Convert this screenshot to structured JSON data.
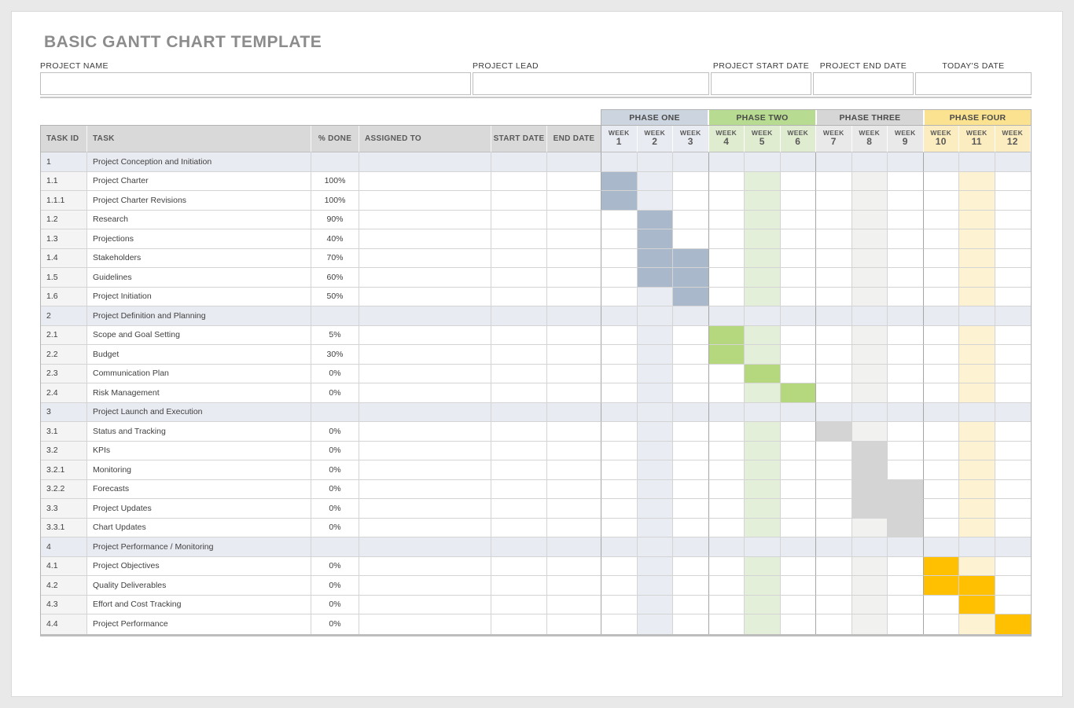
{
  "page": {
    "title": "BASIC GANTT CHART TEMPLATE",
    "background_color": "#e9e9e9",
    "sheet_color": "#ffffff",
    "title_color": "#8c8c8c"
  },
  "form": {
    "fields": [
      {
        "id": "project-name",
        "label": "PROJECT NAME",
        "value": ""
      },
      {
        "id": "project-lead",
        "label": "PROJECT LEAD",
        "value": ""
      },
      {
        "id": "project-start-date",
        "label": "PROJECT START DATE",
        "value": ""
      },
      {
        "id": "project-end-date",
        "label": "PROJECT END DATE",
        "value": ""
      },
      {
        "id": "todays-date",
        "label": "TODAY'S DATE",
        "value": ""
      }
    ]
  },
  "chart_data": {
    "type": "table",
    "subtype": "gantt",
    "title": "BASIC GANTT CHART TEMPLATE",
    "columns": [
      "TASK ID",
      "TASK",
      "% DONE",
      "ASSIGNED TO",
      "START DATE",
      "END DATE"
    ],
    "week_label": "WEEK",
    "header_bg": "#d9d9d9",
    "section_row_bg": "#e9ebf2",
    "task_id_col_bg": "#f4f4f4",
    "stripe_weeks": [
      2,
      5,
      8,
      11
    ],
    "phases": [
      {
        "name": "PHASE ONE",
        "weeks": [
          1,
          2,
          3
        ],
        "header_bg": "#ccd4df",
        "week_header_bg": "#e8ebf1",
        "bar_color": "#a9b8cb",
        "stripe_color": "#e9ecf3"
      },
      {
        "name": "PHASE TWO",
        "weeks": [
          4,
          5,
          6
        ],
        "header_bg": "#b7db90",
        "week_header_bg": "#dfecd0",
        "bar_color": "#b5d87e",
        "stripe_color": "#e3efd9"
      },
      {
        "name": "PHASE THREE",
        "weeks": [
          7,
          8,
          9
        ],
        "header_bg": "#d6d6d6",
        "week_header_bg": "#e9e9e9",
        "bar_color": "#d4d4d4",
        "stripe_color": "#f1f1ef"
      },
      {
        "name": "PHASE FOUR",
        "weeks": [
          10,
          11,
          12
        ],
        "header_bg": "#fbe291",
        "week_header_bg": "#fbedbf",
        "bar_color": "#fec000",
        "stripe_color": "#fdf3d3"
      }
    ],
    "tasks": [
      {
        "id": "1",
        "task": "Project Conception and Initiation",
        "percent_done": "",
        "assigned_to": "",
        "start_date": "",
        "end_date": "",
        "section": true,
        "bar_weeks": []
      },
      {
        "id": "1.1",
        "task": "Project Charter",
        "percent_done": "100%",
        "assigned_to": "",
        "start_date": "",
        "end_date": "",
        "section": false,
        "bar_weeks": [
          1
        ]
      },
      {
        "id": "1.1.1",
        "task": "Project Charter Revisions",
        "percent_done": "100%",
        "assigned_to": "",
        "start_date": "",
        "end_date": "",
        "section": false,
        "bar_weeks": [
          1
        ]
      },
      {
        "id": "1.2",
        "task": "Research",
        "percent_done": "90%",
        "assigned_to": "",
        "start_date": "",
        "end_date": "",
        "section": false,
        "bar_weeks": [
          2
        ]
      },
      {
        "id": "1.3",
        "task": "Projections",
        "percent_done": "40%",
        "assigned_to": "",
        "start_date": "",
        "end_date": "",
        "section": false,
        "bar_weeks": [
          2
        ]
      },
      {
        "id": "1.4",
        "task": "Stakeholders",
        "percent_done": "70%",
        "assigned_to": "",
        "start_date": "",
        "end_date": "",
        "section": false,
        "bar_weeks": [
          2,
          3
        ]
      },
      {
        "id": "1.5",
        "task": "Guidelines",
        "percent_done": "60%",
        "assigned_to": "",
        "start_date": "",
        "end_date": "",
        "section": false,
        "bar_weeks": [
          2,
          3
        ]
      },
      {
        "id": "1.6",
        "task": "Project Initiation",
        "percent_done": "50%",
        "assigned_to": "",
        "start_date": "",
        "end_date": "",
        "section": false,
        "bar_weeks": [
          3
        ]
      },
      {
        "id": "2",
        "task": "Project Definition and Planning",
        "percent_done": "",
        "assigned_to": "",
        "start_date": "",
        "end_date": "",
        "section": true,
        "bar_weeks": []
      },
      {
        "id": "2.1",
        "task": "Scope and Goal Setting",
        "percent_done": "5%",
        "assigned_to": "",
        "start_date": "",
        "end_date": "",
        "section": false,
        "bar_weeks": [
          4
        ]
      },
      {
        "id": "2.2",
        "task": "Budget",
        "percent_done": "30%",
        "assigned_to": "",
        "start_date": "",
        "end_date": "",
        "section": false,
        "bar_weeks": [
          4
        ]
      },
      {
        "id": "2.3",
        "task": "Communication Plan",
        "percent_done": "0%",
        "assigned_to": "",
        "start_date": "",
        "end_date": "",
        "section": false,
        "bar_weeks": [
          5
        ]
      },
      {
        "id": "2.4",
        "task": "Risk Management",
        "percent_done": "0%",
        "assigned_to": "",
        "start_date": "",
        "end_date": "",
        "section": false,
        "bar_weeks": [
          6
        ]
      },
      {
        "id": "3",
        "task": "Project Launch and Execution",
        "percent_done": "",
        "assigned_to": "",
        "start_date": "",
        "end_date": "",
        "section": true,
        "bar_weeks": []
      },
      {
        "id": "3.1",
        "task": "Status and Tracking",
        "percent_done": "0%",
        "assigned_to": "",
        "start_date": "",
        "end_date": "",
        "section": false,
        "bar_weeks": [
          7
        ]
      },
      {
        "id": "3.2",
        "task": "KPIs",
        "percent_done": "0%",
        "assigned_to": "",
        "start_date": "",
        "end_date": "",
        "section": false,
        "bar_weeks": [
          8
        ]
      },
      {
        "id": "3.2.1",
        "task": "Monitoring",
        "percent_done": "0%",
        "assigned_to": "",
        "start_date": "",
        "end_date": "",
        "section": false,
        "bar_weeks": [
          8
        ]
      },
      {
        "id": "3.2.2",
        "task": "Forecasts",
        "percent_done": "0%",
        "assigned_to": "",
        "start_date": "",
        "end_date": "",
        "section": false,
        "bar_weeks": [
          8,
          9
        ]
      },
      {
        "id": "3.3",
        "task": "Project Updates",
        "percent_done": "0%",
        "assigned_to": "",
        "start_date": "",
        "end_date": "",
        "section": false,
        "bar_weeks": [
          8,
          9
        ]
      },
      {
        "id": "3.3.1",
        "task": "Chart Updates",
        "percent_done": "0%",
        "assigned_to": "",
        "start_date": "",
        "end_date": "",
        "section": false,
        "bar_weeks": [
          9
        ]
      },
      {
        "id": "4",
        "task": "Project Performance / Monitoring",
        "percent_done": "",
        "assigned_to": "",
        "start_date": "",
        "end_date": "",
        "section": true,
        "bar_weeks": []
      },
      {
        "id": "4.1",
        "task": "Project Objectives",
        "percent_done": "0%",
        "assigned_to": "",
        "start_date": "",
        "end_date": "",
        "section": false,
        "bar_weeks": [
          10
        ]
      },
      {
        "id": "4.2",
        "task": "Quality Deliverables",
        "percent_done": "0%",
        "assigned_to": "",
        "start_date": "",
        "end_date": "",
        "section": false,
        "bar_weeks": [
          10,
          11
        ]
      },
      {
        "id": "4.3",
        "task": "Effort and Cost Tracking",
        "percent_done": "0%",
        "assigned_to": "",
        "start_date": "",
        "end_date": "",
        "section": false,
        "bar_weeks": [
          11
        ]
      },
      {
        "id": "4.4",
        "task": "Project Performance",
        "percent_done": "0%",
        "assigned_to": "",
        "start_date": "",
        "end_date": "",
        "section": false,
        "bar_weeks": [
          12
        ]
      }
    ]
  }
}
